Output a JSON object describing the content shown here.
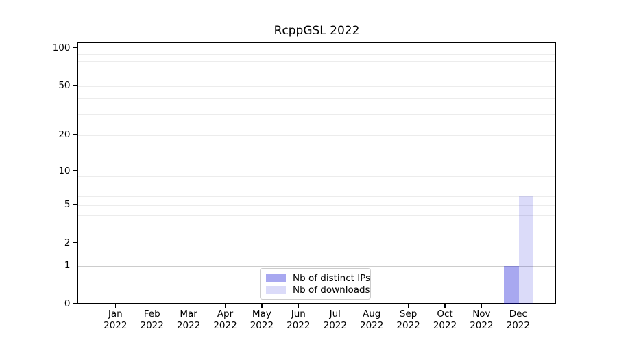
{
  "chart_data": {
    "type": "bar",
    "title": "RcppGSL 2022",
    "categories": [
      {
        "month": "Jan",
        "year": "2022"
      },
      {
        "month": "Feb",
        "year": "2022"
      },
      {
        "month": "Mar",
        "year": "2022"
      },
      {
        "month": "Apr",
        "year": "2022"
      },
      {
        "month": "May",
        "year": "2022"
      },
      {
        "month": "Jun",
        "year": "2022"
      },
      {
        "month": "Jul",
        "year": "2022"
      },
      {
        "month": "Aug",
        "year": "2022"
      },
      {
        "month": "Sep",
        "year": "2022"
      },
      {
        "month": "Oct",
        "year": "2022"
      },
      {
        "month": "Nov",
        "year": "2022"
      },
      {
        "month": "Dec",
        "year": "2022"
      }
    ],
    "series": [
      {
        "name": "Nb of distinct IPs",
        "color": "rgba(0,0,210,0.34)",
        "values": [
          0,
          0,
          0,
          0,
          0,
          0,
          0,
          0,
          0,
          0,
          0,
          1
        ]
      },
      {
        "name": "Nb of downloads",
        "color": "rgba(0,0,210,0.14)",
        "values": [
          0,
          0,
          0,
          0,
          0,
          0,
          0,
          0,
          0,
          0,
          0,
          6
        ]
      }
    ],
    "y_axis": {
      "scale": "log1p",
      "ticks": [
        0,
        1,
        2,
        5,
        10,
        20,
        50,
        100
      ],
      "max": 110,
      "grid_values": [
        1,
        2,
        3,
        4,
        5,
        6,
        7,
        8,
        9,
        10,
        20,
        30,
        40,
        50,
        60,
        70,
        80,
        90,
        100
      ],
      "grid_major": [
        1,
        10,
        100
      ]
    },
    "x_axis": {
      "label_lines": 2
    },
    "legend": {
      "position": "lower center"
    },
    "colors": {
      "grid_minor": "#ececec",
      "grid_major": "#cccccc",
      "axis": "#000000",
      "background": "#ffffff"
    }
  }
}
